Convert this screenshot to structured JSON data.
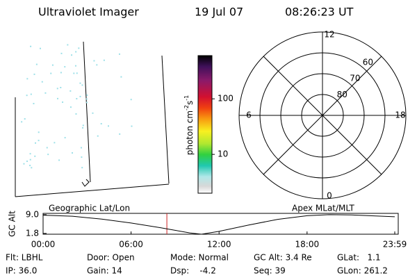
{
  "header": {
    "title": "Ultraviolet Imager",
    "date": "19 Jul 07",
    "time": "08:26:23 UT"
  },
  "colorbar": {
    "label": [
      "photon cm",
      "-2",
      "s",
      "-1"
    ],
    "log": true,
    "lim": [
      2,
      600
    ],
    "ticks": [
      10,
      100
    ]
  },
  "polar": {
    "lat_lim": [
      90,
      50
    ],
    "lat_rings": [
      60,
      70,
      80
    ],
    "mlt_labels": [
      12,
      6,
      0,
      18
    ]
  },
  "strip": {
    "label_left": "Geographic Lat/Lon",
    "label_right": "Apex MLat/MLT",
    "y_label": "GC Alt",
    "ylim": [
      1.5,
      9.5
    ],
    "yticks": [
      {
        "value": 9,
        "label": "9.0"
      },
      1.8
    ],
    "xlim": [
      0,
      23.98
    ],
    "xticks": [
      {
        "value": 0,
        "label": "00:00"
      },
      {
        "value": 6,
        "label": "06:00"
      },
      {
        "value": 12,
        "label": "12:00"
      },
      {
        "value": 18,
        "label": "18:00"
      },
      {
        "value": 23.98,
        "label": "23:59"
      }
    ],
    "x": [
      0,
      2,
      4,
      6,
      8,
      9,
      10,
      10.8,
      12,
      14,
      16,
      18,
      19.5,
      21,
      23.98
    ],
    "values": [
      8.8,
      8.4,
      7.3,
      5.8,
      4.0,
      3.0,
      2.0,
      1.5,
      2.6,
      5.0,
      7.2,
      8.6,
      9.0,
      8.9,
      8.2
    ],
    "marker_x": 8.44,
    "marker_color": "#cc2222"
  },
  "footer": [
    [
      "Flt: LBHL",
      "Door: Open",
      "Mode: Normal",
      "GC Alt: 3.4 Re",
      "GLat:   1.1"
    ],
    [
      "IP: 36.0",
      "Gain: 14",
      "Dsp:    -4.2",
      "Seq: 39",
      "GLon: 261.2"
    ]
  ]
}
